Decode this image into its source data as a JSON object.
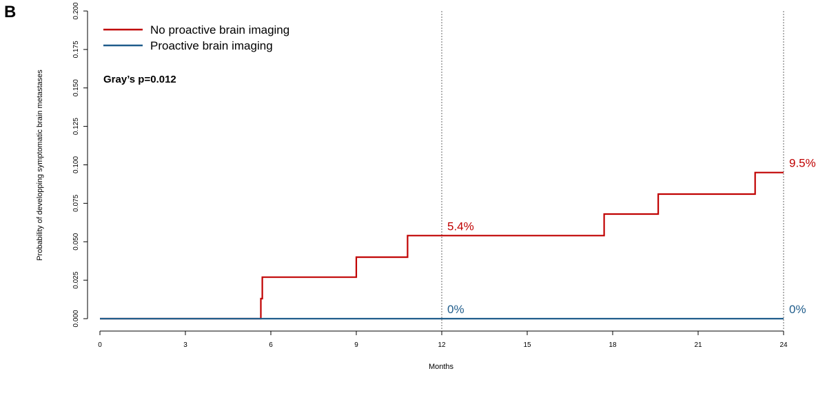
{
  "panel_label": "B",
  "chart_data": {
    "type": "line",
    "step": true,
    "xlabel": "Months",
    "ylabel": "Probability of developping symptomatic brain metastases",
    "xlim": [
      0,
      24
    ],
    "ylim": [
      0,
      0.2
    ],
    "x_ticks": [
      0,
      3,
      6,
      9,
      12,
      15,
      18,
      21,
      24
    ],
    "x_tick_labels": [
      "0",
      "3",
      "6",
      "9",
      "12",
      "15",
      "18",
      "21",
      "24"
    ],
    "y_ticks": [
      0,
      0.025,
      0.05,
      0.075,
      0.1,
      0.125,
      0.15,
      0.175,
      0.2
    ],
    "y_tick_labels": [
      "0.000",
      "0.025",
      "0.050",
      "0.075",
      "0.100",
      "0.125",
      "0.150",
      "0.175",
      "0.200"
    ],
    "reference_lines_x": [
      12,
      24
    ],
    "grid": false,
    "legend_position": "top-left",
    "annotation": "Gray’s p=0.012",
    "series": [
      {
        "name": "No proactive brain imaging",
        "color": "#c00000",
        "x": [
          0,
          5.65,
          5.65,
          5.7,
          5.7,
          9.0,
          9.0,
          10.8,
          10.8,
          17.7,
          17.7,
          19.6,
          19.6,
          23.0,
          23.0,
          24
        ],
        "y": [
          0,
          0,
          0.013,
          0.013,
          0.027,
          0.027,
          0.04,
          0.04,
          0.054,
          0.054,
          0.068,
          0.068,
          0.081,
          0.081,
          0.095,
          0.095
        ],
        "labels": [
          {
            "x": 12,
            "y": 0.054,
            "text": "5.4%"
          },
          {
            "x": 24,
            "y": 0.095,
            "text": "9.5%"
          }
        ]
      },
      {
        "name": "Proactive brain imaging",
        "color": "#1f5c8b",
        "x": [
          0,
          24
        ],
        "y": [
          0,
          0
        ],
        "labels": [
          {
            "x": 12,
            "y": 0,
            "text": "0%"
          },
          {
            "x": 24,
            "y": 0,
            "text": "0%"
          }
        ]
      }
    ]
  }
}
